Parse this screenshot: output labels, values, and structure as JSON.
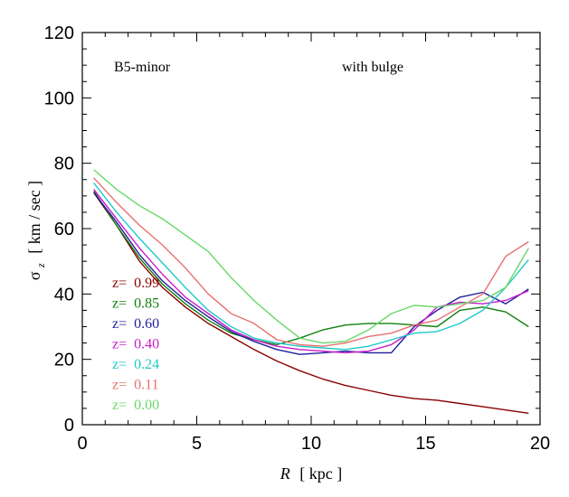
{
  "chart_data": {
    "type": "line",
    "title": "",
    "annotations": {
      "left": "B5-minor",
      "right": "with bulge"
    },
    "xlabel": {
      "symbol": "R",
      "unit": "[ kpc ]"
    },
    "ylabel": {
      "symbol": "σ",
      "subscript": "z",
      "unit": "[ km / sec ]"
    },
    "xlim": [
      0,
      20
    ],
    "ylim": [
      0,
      120
    ],
    "xticks": [
      0,
      5,
      10,
      15,
      20
    ],
    "yticks": [
      0,
      20,
      40,
      60,
      80,
      100,
      120
    ],
    "x": [
      0.5,
      1.5,
      2.5,
      3.5,
      4.5,
      5.5,
      6.5,
      7.5,
      8.5,
      9.5,
      10.5,
      11.5,
      12.5,
      13.5,
      14.5,
      15.5,
      16.5,
      17.5,
      18.5,
      19.5
    ],
    "legend_position": "lower-left",
    "series": [
      {
        "name": "z=  0.99",
        "color": "#8b0000",
        "values": [
          71,
          61,
          50,
          42,
          36,
          31,
          27,
          23,
          19.5,
          16.5,
          14,
          12,
          10.5,
          9,
          8,
          7.5,
          6.5,
          5.5,
          4.5,
          3.5
        ]
      },
      {
        "name": "z=  0.85",
        "color": "#108010",
        "values": [
          71.5,
          61,
          51,
          43,
          37,
          32,
          28,
          26,
          24.5,
          26.5,
          29,
          30.5,
          31,
          31,
          30.5,
          30,
          35,
          36,
          34.5,
          30
        ]
      },
      {
        "name": "z=  0.60",
        "color": "#1e1e9c",
        "values": [
          71,
          62,
          52,
          44,
          38,
          33,
          28.5,
          25.5,
          23,
          21.5,
          22,
          22.5,
          22,
          22,
          30,
          35,
          39,
          40.5,
          37,
          41.5
        ]
      },
      {
        "name": "z=  0.40",
        "color": "#c81ec8",
        "values": [
          72,
          63,
          54,
          46,
          39,
          34,
          29,
          26,
          24,
          23,
          22.5,
          22,
          22.5,
          24.5,
          29,
          36,
          37.5,
          37,
          38,
          41
        ]
      },
      {
        "name": "z=  0.24",
        "color": "#20c8c8",
        "values": [
          74,
          65,
          57,
          49.5,
          42,
          35,
          30,
          26.5,
          25,
          24,
          23.5,
          23,
          24,
          26,
          28,
          28.5,
          31,
          35,
          42,
          50.5
        ]
      },
      {
        "name": "z=  0.11",
        "color": "#e87070",
        "values": [
          75.5,
          68,
          61,
          55,
          48,
          40,
          34,
          31,
          26,
          24.5,
          24,
          25,
          27,
          28,
          30.5,
          32,
          36,
          40,
          51.5,
          56
        ]
      },
      {
        "name": "z=  0.00",
        "color": "#68d868",
        "values": [
          78,
          72,
          67,
          63,
          58,
          53,
          45,
          38,
          32,
          26.5,
          25,
          25.5,
          29,
          34,
          36.5,
          36,
          37,
          38,
          42,
          54
        ]
      }
    ]
  }
}
